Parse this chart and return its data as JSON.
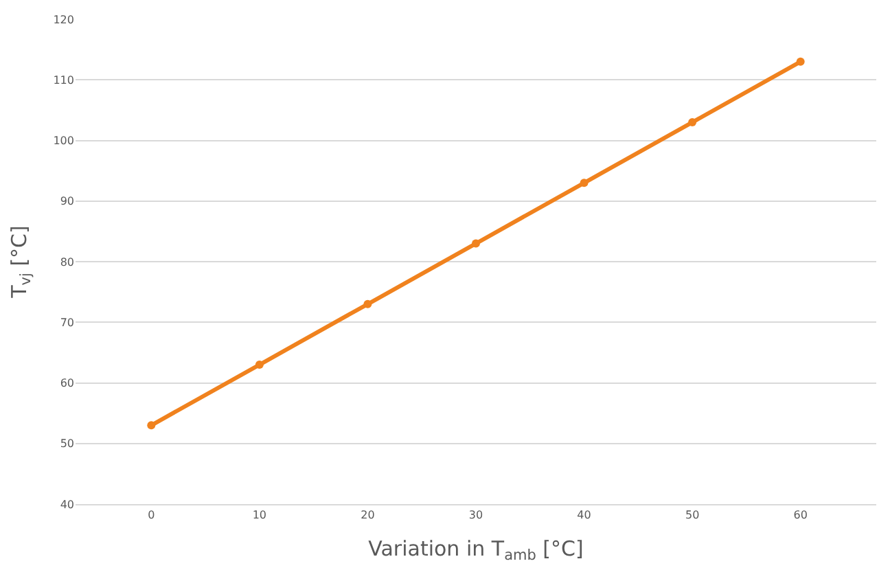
{
  "chart_data": {
    "type": "line",
    "xlabel": "Variation in T$_{amb}$ [°C]",
    "ylabel": "T$_{vj}$ [°C]",
    "categories": [
      "0",
      "10",
      "20",
      "30",
      "40",
      "50",
      "60"
    ],
    "series": [
      {
        "color": "#f0821e",
        "values": [
          53,
          63,
          73,
          83,
          93,
          103,
          113
        ]
      }
    ],
    "ylim": [
      40,
      120
    ],
    "yticks": [
      40,
      50,
      60,
      70,
      80,
      90,
      100,
      110,
      120
    ],
    "grid": "y",
    "marker": "circle",
    "line_style": "solid"
  }
}
